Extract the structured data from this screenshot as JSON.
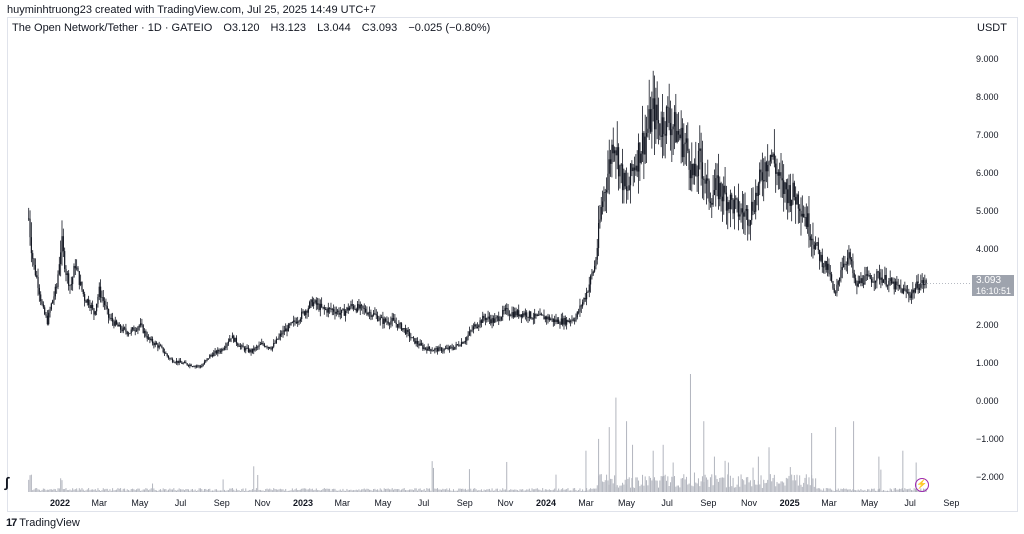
{
  "caption": "huyminhtruong23 created with TradingView.com, Jul 25, 2025 14:49 UTC+7",
  "legend": {
    "symbol": "The Open Network/Tether · 1D · GATEIO",
    "open": "O3.120",
    "high": "H3.123",
    "low": "L3.044",
    "close": "C3.093",
    "change": "−0.025 (−0.80%)"
  },
  "currency": "USDT",
  "last_price": "3.093",
  "countdown": "16:10:51",
  "brand": "TradingView",
  "colors": {
    "candles": "#131722",
    "volume": "#b2b5be",
    "price_tag": "#9ea3ad",
    "accent": "#9c27b0"
  },
  "chart_data": {
    "type": "candlestick",
    "y_ticks": [
      "9.000",
      "8.000",
      "7.000",
      "6.000",
      "5.000",
      "4.000",
      "3.000",
      "2.000",
      "1.000",
      "0.000",
      "−1.000",
      "−2.000"
    ],
    "ylim": [
      -2.4,
      9.5
    ],
    "x_ticks": [
      {
        "label": "2022",
        "date": "2022-01-01",
        "year": true
      },
      {
        "label": "Mar",
        "date": "2022-03-01"
      },
      {
        "label": "May",
        "date": "2022-05-01"
      },
      {
        "label": "Jul",
        "date": "2022-07-01"
      },
      {
        "label": "Sep",
        "date": "2022-09-01"
      },
      {
        "label": "Nov",
        "date": "2022-11-01"
      },
      {
        "label": "2023",
        "date": "2023-01-01",
        "year": true
      },
      {
        "label": "Mar",
        "date": "2023-03-01"
      },
      {
        "label": "May",
        "date": "2023-05-01"
      },
      {
        "label": "Jul",
        "date": "2023-07-01"
      },
      {
        "label": "Sep",
        "date": "2023-09-01"
      },
      {
        "label": "Nov",
        "date": "2023-11-01"
      },
      {
        "label": "2024",
        "date": "2024-01-01",
        "year": true
      },
      {
        "label": "Mar",
        "date": "2024-03-01"
      },
      {
        "label": "May",
        "date": "2024-05-01"
      },
      {
        "label": "Jul",
        "date": "2024-07-01"
      },
      {
        "label": "Sep",
        "date": "2024-09-01"
      },
      {
        "label": "Nov",
        "date": "2024-11-01"
      },
      {
        "label": "2025",
        "date": "2025-01-01",
        "year": true
      },
      {
        "label": "Mar",
        "date": "2025-03-01"
      },
      {
        "label": "May",
        "date": "2025-05-01"
      },
      {
        "label": "Jul",
        "date": "2025-07-01"
      },
      {
        "label": "Sep",
        "date": "2025-09-01"
      }
    ],
    "price_path": [
      [
        "2021-11-15",
        4.8
      ],
      [
        "2021-11-22",
        3.6
      ],
      [
        "2021-11-29",
        3.1
      ],
      [
        "2021-12-06",
        2.4
      ],
      [
        "2021-12-13",
        2.1
      ],
      [
        "2021-12-20",
        2.6
      ],
      [
        "2021-12-27",
        3.0
      ],
      [
        "2022-01-03",
        4.2
      ],
      [
        "2022-01-10",
        3.4
      ],
      [
        "2022-01-17",
        3.0
      ],
      [
        "2022-01-24",
        3.6
      ],
      [
        "2022-01-31",
        3.1
      ],
      [
        "2022-02-07",
        2.7
      ],
      [
        "2022-02-14",
        2.6
      ],
      [
        "2022-02-21",
        2.3
      ],
      [
        "2022-03-01",
        2.9
      ],
      [
        "2022-03-08",
        2.6
      ],
      [
        "2022-03-15",
        2.2
      ],
      [
        "2022-04-01",
        1.9
      ],
      [
        "2022-04-15",
        1.8
      ],
      [
        "2022-05-01",
        2.0
      ],
      [
        "2022-05-15",
        1.6
      ],
      [
        "2022-06-01",
        1.4
      ],
      [
        "2022-06-15",
        1.1
      ],
      [
        "2022-07-01",
        1.0
      ],
      [
        "2022-07-15",
        0.95
      ],
      [
        "2022-08-01",
        0.9
      ],
      [
        "2022-08-15",
        1.2
      ],
      [
        "2022-09-01",
        1.35
      ],
      [
        "2022-09-15",
        1.7
      ],
      [
        "2022-10-01",
        1.4
      ],
      [
        "2022-10-15",
        1.3
      ],
      [
        "2022-11-01",
        1.5
      ],
      [
        "2022-11-15",
        1.4
      ],
      [
        "2022-12-01",
        1.8
      ],
      [
        "2022-12-15",
        2.0
      ],
      [
        "2023-01-01",
        2.3
      ],
      [
        "2023-01-15",
        2.6
      ],
      [
        "2023-02-01",
        2.4
      ],
      [
        "2023-02-15",
        2.4
      ],
      [
        "2023-03-01",
        2.3
      ],
      [
        "2023-03-15",
        2.5
      ],
      [
        "2023-04-01",
        2.4
      ],
      [
        "2023-04-15",
        2.3
      ],
      [
        "2023-05-01",
        2.1
      ],
      [
        "2023-05-15",
        2.1
      ],
      [
        "2023-06-01",
        1.9
      ],
      [
        "2023-06-15",
        1.6
      ],
      [
        "2023-07-01",
        1.4
      ],
      [
        "2023-07-15",
        1.35
      ],
      [
        "2023-08-01",
        1.35
      ],
      [
        "2023-08-15",
        1.4
      ],
      [
        "2023-09-01",
        1.6
      ],
      [
        "2023-09-15",
        1.95
      ],
      [
        "2023-10-01",
        2.2
      ],
      [
        "2023-10-15",
        2.1
      ],
      [
        "2023-11-01",
        2.35
      ],
      [
        "2023-11-15",
        2.3
      ],
      [
        "2023-12-01",
        2.3
      ],
      [
        "2023-12-15",
        2.2
      ],
      [
        "2024-01-01",
        2.2
      ],
      [
        "2024-01-15",
        2.1
      ],
      [
        "2024-02-01",
        2.1
      ],
      [
        "2024-02-15",
        2.2
      ],
      [
        "2024-03-01",
        2.8
      ],
      [
        "2024-03-15",
        3.6
      ],
      [
        "2024-03-25",
        5.2
      ],
      [
        "2024-04-05",
        6.2
      ],
      [
        "2024-04-12",
        7.0
      ],
      [
        "2024-04-20",
        6.2
      ],
      [
        "2024-05-01",
        5.4
      ],
      [
        "2024-05-10",
        6.1
      ],
      [
        "2024-05-20",
        6.6
      ],
      [
        "2024-06-01",
        7.1
      ],
      [
        "2024-06-10",
        7.6
      ],
      [
        "2024-06-20",
        7.2
      ],
      [
        "2024-07-01",
        7.5
      ],
      [
        "2024-07-15",
        7.1
      ],
      [
        "2024-08-01",
        6.6
      ],
      [
        "2024-08-10",
        5.8
      ],
      [
        "2024-08-20",
        6.4
      ],
      [
        "2024-09-01",
        5.4
      ],
      [
        "2024-09-15",
        5.6
      ],
      [
        "2024-10-01",
        5.3
      ],
      [
        "2024-10-15",
        5.0
      ],
      [
        "2024-11-01",
        4.9
      ],
      [
        "2024-11-15",
        5.6
      ],
      [
        "2024-12-01",
        6.6
      ],
      [
        "2024-12-10",
        6.2
      ],
      [
        "2024-12-20",
        5.6
      ],
      [
        "2025-01-01",
        5.5
      ],
      [
        "2025-01-15",
        5.3
      ],
      [
        "2025-02-01",
        4.5
      ],
      [
        "2025-02-15",
        3.8
      ],
      [
        "2025-03-01",
        3.4
      ],
      [
        "2025-03-10",
        2.7
      ],
      [
        "2025-03-20",
        3.6
      ],
      [
        "2025-04-01",
        3.8
      ],
      [
        "2025-04-10",
        3.0
      ],
      [
        "2025-04-20",
        3.2
      ],
      [
        "2025-05-01",
        3.2
      ],
      [
        "2025-05-15",
        3.3
      ],
      [
        "2025-06-01",
        3.1
      ],
      [
        "2025-06-15",
        2.95
      ],
      [
        "2025-07-01",
        2.8
      ],
      [
        "2025-07-15",
        3.1
      ],
      [
        "2025-07-25",
        3.093
      ]
    ],
    "volume_spikes": [
      [
        "2024-03-01",
        0.35
      ],
      [
        "2024-03-20",
        0.45
      ],
      [
        "2024-04-05",
        0.55
      ],
      [
        "2024-04-15",
        0.8
      ],
      [
        "2024-05-01",
        0.6
      ],
      [
        "2024-05-10",
        0.4
      ],
      [
        "2024-06-10",
        0.35
      ],
      [
        "2024-06-25",
        0.4
      ],
      [
        "2024-07-10",
        0.25
      ],
      [
        "2024-08-05",
        1.0
      ],
      [
        "2024-08-25",
        0.6
      ],
      [
        "2024-09-10",
        0.3
      ],
      [
        "2024-10-01",
        0.25
      ],
      [
        "2024-11-15",
        0.3
      ],
      [
        "2024-12-01",
        0.35
      ],
      [
        "2025-02-03",
        0.5
      ],
      [
        "2025-03-11",
        0.55
      ],
      [
        "2025-04-07",
        0.6
      ],
      [
        "2025-05-15",
        0.3
      ],
      [
        "2025-06-20",
        0.35
      ],
      [
        "2025-07-10",
        0.25
      ]
    ]
  }
}
